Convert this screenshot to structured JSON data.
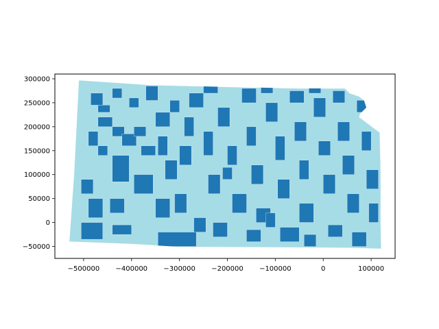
{
  "chart_data": {
    "type": "choropleth-map",
    "title": "",
    "xlabel": "",
    "ylabel": "",
    "xlim": [
      -560000,
      150000
    ],
    "ylim": [
      -75000,
      310000
    ],
    "x_ticks": [
      {
        "value": -500000,
        "label": "−500000"
      },
      {
        "value": -400000,
        "label": "−400000"
      },
      {
        "value": -300000,
        "label": "−300000"
      },
      {
        "value": -200000,
        "label": "−200000"
      },
      {
        "value": -100000,
        "label": "−100000"
      },
      {
        "value": 0,
        "label": "0"
      },
      {
        "value": 100000,
        "label": "100000"
      }
    ],
    "y_ticks": [
      {
        "value": 300000,
        "label": "300000"
      },
      {
        "value": 250000,
        "label": "250000"
      },
      {
        "value": 200000,
        "label": "200000"
      },
      {
        "value": 150000,
        "label": "150000"
      },
      {
        "value": 100000,
        "label": "100000"
      },
      {
        "value": 50000,
        "label": "50000"
      },
      {
        "value": 0,
        "label": "0"
      },
      {
        "value": -50000,
        "label": "−50000"
      }
    ],
    "colors": {
      "class_a": "#a6dce6",
      "class_b": "#1f77b4"
    },
    "outline": [
      [
        -510000,
        297000
      ],
      [
        -360000,
        287000
      ],
      [
        -200000,
        283000
      ],
      [
        -50000,
        280000
      ],
      [
        45000,
        280000
      ],
      [
        55000,
        270000
      ],
      [
        75000,
        263000
      ],
      [
        85000,
        255000
      ],
      [
        90000,
        240000
      ],
      [
        78000,
        228000
      ],
      [
        75000,
        220000
      ],
      [
        95000,
        205000
      ],
      [
        108000,
        195000
      ],
      [
        118000,
        188000
      ],
      [
        119000,
        150000
      ],
      [
        120000,
        100000
      ],
      [
        120000,
        50000
      ],
      [
        120000,
        0
      ],
      [
        121000,
        -55000
      ],
      [
        50000,
        -53000
      ],
      [
        -100000,
        -52000
      ],
      [
        -300000,
        -51000
      ],
      [
        -400000,
        -45000
      ],
      [
        -530000,
        -40000
      ],
      [
        -520000,
        100000
      ]
    ],
    "regions_class_b": [
      [
        -485000,
        245000,
        25000,
        25000
      ],
      [
        -470000,
        200000,
        30000,
        20000
      ],
      [
        -490000,
        160000,
        20000,
        30000
      ],
      [
        -440000,
        180000,
        25000,
        20000
      ],
      [
        -470000,
        140000,
        20000,
        20000
      ],
      [
        -440000,
        85000,
        35000,
        55000
      ],
      [
        -505000,
        60000,
        25000,
        30000
      ],
      [
        -490000,
        10000,
        30000,
        40000
      ],
      [
        -505000,
        -35000,
        45000,
        35000
      ],
      [
        -445000,
        20000,
        30000,
        30000
      ],
      [
        -440000,
        -25000,
        40000,
        20000
      ],
      [
        -395000,
        60000,
        40000,
        40000
      ],
      [
        -420000,
        160000,
        30000,
        25000
      ],
      [
        -395000,
        180000,
        25000,
        20000
      ],
      [
        -405000,
        240000,
        20000,
        20000
      ],
      [
        -370000,
        255000,
        25000,
        30000
      ],
      [
        -350000,
        200000,
        30000,
        30000
      ],
      [
        -345000,
        140000,
        20000,
        40000
      ],
      [
        -330000,
        90000,
        25000,
        40000
      ],
      [
        -350000,
        10000,
        30000,
        40000
      ],
      [
        -345000,
        -50000,
        80000,
        30000
      ],
      [
        -310000,
        20000,
        25000,
        40000
      ],
      [
        -300000,
        120000,
        25000,
        40000
      ],
      [
        -290000,
        180000,
        20000,
        40000
      ],
      [
        -280000,
        240000,
        30000,
        30000
      ],
      [
        -250000,
        140000,
        20000,
        50000
      ],
      [
        -240000,
        60000,
        25000,
        40000
      ],
      [
        -220000,
        200000,
        25000,
        40000
      ],
      [
        -200000,
        120000,
        20000,
        40000
      ],
      [
        -190000,
        20000,
        30000,
        40000
      ],
      [
        -230000,
        -30000,
        30000,
        30000
      ],
      [
        -170000,
        250000,
        30000,
        30000
      ],
      [
        -160000,
        160000,
        20000,
        40000
      ],
      [
        -150000,
        80000,
        25000,
        40000
      ],
      [
        -140000,
        0,
        30000,
        30000
      ],
      [
        -120000,
        210000,
        25000,
        40000
      ],
      [
        -100000,
        130000,
        20000,
        50000
      ],
      [
        -95000,
        50000,
        25000,
        40000
      ],
      [
        -90000,
        -40000,
        40000,
        30000
      ],
      [
        -70000,
        250000,
        30000,
        25000
      ],
      [
        -60000,
        170000,
        25000,
        40000
      ],
      [
        -50000,
        90000,
        20000,
        40000
      ],
      [
        -50000,
        0,
        30000,
        40000
      ],
      [
        -20000,
        220000,
        25000,
        40000
      ],
      [
        -10000,
        140000,
        25000,
        30000
      ],
      [
        0,
        60000,
        25000,
        40000
      ],
      [
        10000,
        -30000,
        30000,
        25000
      ],
      [
        20000,
        250000,
        25000,
        25000
      ],
      [
        30000,
        170000,
        25000,
        40000
      ],
      [
        40000,
        100000,
        25000,
        40000
      ],
      [
        50000,
        20000,
        25000,
        40000
      ],
      [
        60000,
        -50000,
        30000,
        30000
      ],
      [
        70000,
        230000,
        20000,
        25000
      ],
      [
        80000,
        150000,
        20000,
        40000
      ],
      [
        90000,
        70000,
        25000,
        40000
      ],
      [
        95000,
        0,
        20000,
        40000
      ],
      [
        -380000,
        140000,
        30000,
        20000
      ],
      [
        -470000,
        230000,
        25000,
        15000
      ],
      [
        -250000,
        270000,
        30000,
        15000
      ],
      [
        -130000,
        270000,
        25000,
        15000
      ],
      [
        -30000,
        270000,
        25000,
        12000
      ],
      [
        -270000,
        -20000,
        25000,
        30000
      ],
      [
        -160000,
        -40000,
        30000,
        25000
      ],
      [
        -40000,
        -50000,
        25000,
        25000
      ],
      [
        -210000,
        90000,
        20000,
        25000
      ],
      [
        -120000,
        -10000,
        20000,
        30000
      ],
      [
        -320000,
        230000,
        20000,
        25000
      ],
      [
        -440000,
        260000,
        20000,
        20000
      ]
    ]
  }
}
